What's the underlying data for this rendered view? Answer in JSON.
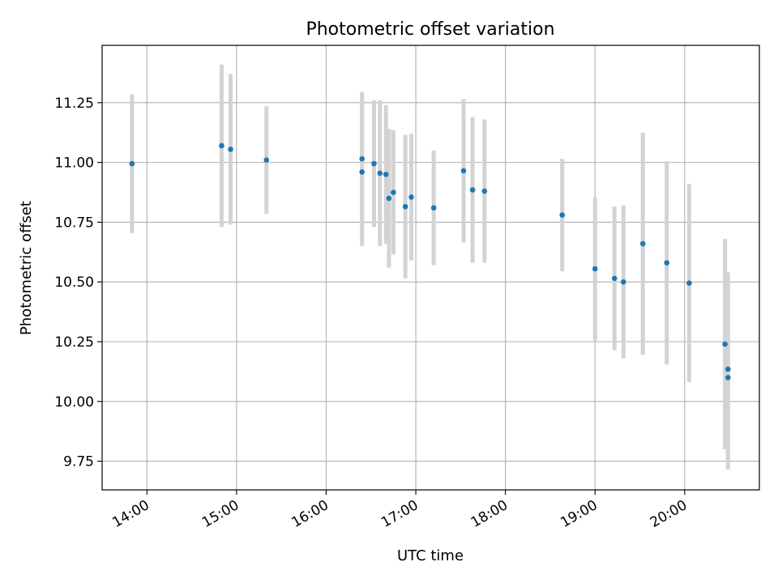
{
  "chart_data": {
    "type": "scatter",
    "title": "Photometric offset variation",
    "xlabel": "UTC time",
    "ylabel": "Photometric offset",
    "x_tick_labels": [
      "14:00",
      "15:00",
      "16:00",
      "17:00",
      "18:00",
      "19:00",
      "20:00"
    ],
    "y_tick_labels": [
      "9.75",
      "10.00",
      "10.25",
      "10.50",
      "10.75",
      "11.00",
      "11.25"
    ],
    "xlim": [
      "13:30",
      "20:50"
    ],
    "ylim": [
      9.63,
      11.49
    ],
    "grid": true,
    "colors": {
      "point": "#1f77b4",
      "errorbar": "#d3d3d3",
      "grid": "#b0b0b0"
    },
    "series": [
      {
        "points": [
          {
            "x": "13:50",
            "y": 10.995,
            "err": 0.29
          },
          {
            "x": "14:50",
            "y": 11.07,
            "err": 0.34
          },
          {
            "x": "14:56",
            "y": 11.055,
            "err": 0.315
          },
          {
            "x": "15:20",
            "y": 11.01,
            "err": 0.225
          },
          {
            "x": "16:24",
            "y": 11.015,
            "err": 0.28
          },
          {
            "x": "16:24",
            "y": 10.96,
            "err": 0.31
          },
          {
            "x": "16:32",
            "y": 10.995,
            "err": 0.265
          },
          {
            "x": "16:36",
            "y": 10.955,
            "err": 0.305
          },
          {
            "x": "16:40",
            "y": 10.95,
            "err": 0.29
          },
          {
            "x": "16:42",
            "y": 10.85,
            "err": 0.29
          },
          {
            "x": "16:45",
            "y": 10.875,
            "err": 0.26
          },
          {
            "x": "16:53",
            "y": 10.815,
            "err": 0.3
          },
          {
            "x": "16:57",
            "y": 10.855,
            "err": 0.265
          },
          {
            "x": "17:12",
            "y": 10.81,
            "err": 0.24
          },
          {
            "x": "17:32",
            "y": 10.965,
            "err": 0.3
          },
          {
            "x": "17:38",
            "y": 10.885,
            "err": 0.305
          },
          {
            "x": "17:46",
            "y": 10.88,
            "err": 0.3
          },
          {
            "x": "18:38",
            "y": 10.78,
            "err": 0.235
          },
          {
            "x": "19:00",
            "y": 10.555,
            "err": 0.3
          },
          {
            "x": "19:13",
            "y": 10.515,
            "err": 0.3
          },
          {
            "x": "19:19",
            "y": 10.5,
            "err": 0.32
          },
          {
            "x": "19:32",
            "y": 10.66,
            "err": 0.465
          },
          {
            "x": "19:48",
            "y": 10.58,
            "err": 0.425
          },
          {
            "x": "20:03",
            "y": 10.495,
            "err": 0.415
          },
          {
            "x": "20:27",
            "y": 10.24,
            "err": 0.44
          },
          {
            "x": "20:29",
            "y": 10.135,
            "err": 0.405
          },
          {
            "x": "20:29",
            "y": 10.1,
            "err": 0.385
          }
        ]
      }
    ]
  }
}
